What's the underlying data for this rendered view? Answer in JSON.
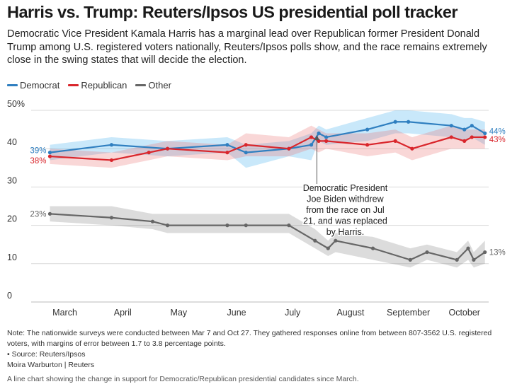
{
  "title": "Harris vs. Trump: Reuters/Ipsos US presidential poll tracker",
  "subtitle": "Democratic Vice President Kamala Harris has a marginal lead over Republican former President Donald Trump among U.S. registered voters nationally, Reuters/Ipsos polls show, and the race remains extremely close in the swing states that will decide the election.",
  "colors": {
    "democrat": "#2f7fc0",
    "republican": "#d9262c",
    "other": "#666666",
    "grid": "#d9d9d9"
  },
  "legend": [
    {
      "label": "Democrat",
      "color": "#2f7fc0"
    },
    {
      "label": "Republican",
      "color": "#d9262c"
    },
    {
      "label": "Other",
      "color": "#666666"
    }
  ],
  "chart_data": {
    "type": "line",
    "title": "Harris vs. Trump: Reuters/Ipsos US presidential poll tracker",
    "xlabel": "",
    "ylabel": "",
    "ylim": [
      0,
      50
    ],
    "yticks": [
      0,
      10,
      20,
      30,
      40,
      50
    ],
    "ytick_labels": [
      "0",
      "10",
      "20",
      "30",
      "40",
      "50%"
    ],
    "month_labels": [
      "March",
      "April",
      "May",
      "June",
      "July",
      "August",
      "September",
      "October"
    ],
    "month_days": [
      15,
      46,
      76,
      107,
      137,
      168,
      199,
      229
    ],
    "x_domain_days": [
      0,
      242
    ],
    "x_unit": "days since Mar 1",
    "series": [
      {
        "name": "Democrat",
        "x": [
          7,
          40,
          70,
          102,
          112,
          135,
          147,
          151,
          155,
          177,
          192,
          199,
          222,
          229,
          233,
          240
        ],
        "values": [
          39,
          41,
          40,
          41,
          39,
          40,
          41,
          44,
          43,
          45,
          47,
          47,
          46,
          45,
          46,
          44
        ],
        "lower": [
          37,
          39,
          38,
          39,
          35,
          38,
          37,
          42,
          41,
          42,
          44,
          44,
          43,
          42,
          43,
          41
        ],
        "upper": [
          41,
          43,
          42,
          43,
          41,
          42,
          44,
          46,
          45,
          48,
          50,
          50,
          49,
          48,
          48,
          47
        ],
        "start_label": "39%",
        "end_label": "44%"
      },
      {
        "name": "Republican",
        "x": [
          7,
          40,
          60,
          70,
          102,
          112,
          135,
          147,
          151,
          155,
          177,
          192,
          201,
          222,
          229,
          233,
          240
        ],
        "values": [
          38,
          37,
          39,
          40,
          39,
          41,
          40,
          43,
          42,
          42,
          41,
          42,
          40,
          43,
          42,
          43,
          43
        ],
        "lower": [
          36,
          35,
          37,
          38,
          37,
          38,
          38,
          40,
          39,
          40,
          38,
          39,
          37,
          40,
          40,
          40,
          40
        ],
        "upper": [
          40,
          39,
          41,
          42,
          41,
          44,
          43,
          46,
          45,
          44,
          44,
          45,
          43,
          46,
          45,
          45,
          45
        ],
        "start_label": "38%",
        "end_label": "43%"
      },
      {
        "name": "Other",
        "x": [
          7,
          40,
          62,
          70,
          102,
          112,
          135,
          149,
          156,
          160,
          180,
          200,
          209,
          225,
          231,
          234,
          240
        ],
        "values": [
          23,
          22,
          21,
          20,
          20,
          20,
          20,
          16,
          14,
          16,
          14,
          11,
          13,
          11,
          14,
          11,
          13
        ],
        "lower": [
          21,
          20,
          19,
          18,
          18,
          18,
          18,
          14,
          12,
          13,
          11,
          9,
          11,
          9,
          11,
          9,
          10
        ],
        "upper": [
          25,
          25,
          23,
          23,
          23,
          23,
          23,
          19,
          16,
          18,
          17,
          14,
          15,
          13,
          16,
          13,
          16
        ],
        "start_label": "23%",
        "end_label": "13%"
      }
    ],
    "annotation": {
      "x": 150,
      "text_lines": [
        "Democratic President",
        "Joe Biden withdrew",
        "from the race on Jul",
        "21, and was replaced",
        "by Harris."
      ]
    }
  },
  "note": "Note: The nationwide surveys were conducted between Mar 7 and Oct 27. They gathered responses online from between 807-3562 U.S. registered voters, with margins of error between 1.7 to 3.8 percentage points.",
  "source": "• Source: Reuters/Ipsos",
  "credit": "Moira Warburton | Reuters",
  "caption": "A line chart showing the change in support for Democratic/Republican presidential candidates since March."
}
